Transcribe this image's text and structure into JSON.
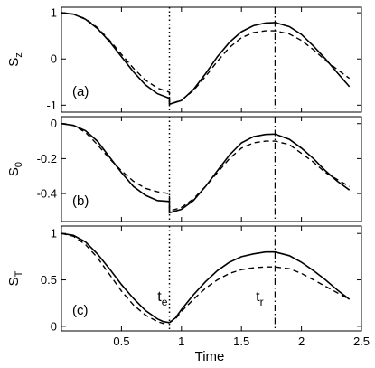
{
  "chart_data": [
    {
      "type": "line",
      "panel_label": "(a)",
      "ylabel": "S",
      "ylabel_sub": "z",
      "xlim": [
        0,
        2.5
      ],
      "ylim": [
        -1.15,
        1.12
      ],
      "yticks": [
        1,
        0,
        -1
      ],
      "ytick_labels": [
        "1",
        "0",
        "-1"
      ],
      "xticks": [
        0.5,
        1,
        1.5,
        2,
        2.5
      ],
      "show_xtick_labels": false,
      "vlines": [
        {
          "x": 0.9,
          "style": "dotted"
        },
        {
          "x": 1.78,
          "style": "dashdot"
        }
      ],
      "series": [
        {
          "style": "solid",
          "x": [
            0,
            0.1,
            0.2,
            0.3,
            0.4,
            0.5,
            0.6,
            0.7,
            0.8,
            0.9,
            0.9,
            1.0,
            1.1,
            1.2,
            1.3,
            1.4,
            1.5,
            1.6,
            1.7,
            1.78,
            1.9,
            2.0,
            2.1,
            2.2,
            2.3,
            2.4
          ],
          "y": [
            1.0,
            0.97,
            0.86,
            0.66,
            0.38,
            0.05,
            -0.28,
            -0.56,
            -0.75,
            -0.85,
            -0.98,
            -0.9,
            -0.66,
            -0.32,
            0.05,
            0.36,
            0.59,
            0.72,
            0.78,
            0.79,
            0.7,
            0.53,
            0.28,
            0.0,
            -0.3,
            -0.6
          ]
        },
        {
          "style": "dashed",
          "x": [
            0,
            0.1,
            0.2,
            0.3,
            0.4,
            0.5,
            0.6,
            0.7,
            0.8,
            0.9,
            0.9,
            1.0,
            1.1,
            1.2,
            1.3,
            1.4,
            1.5,
            1.6,
            1.7,
            1.78,
            1.9,
            2.0,
            2.1,
            2.2,
            2.3,
            2.4
          ],
          "y": [
            1.0,
            0.97,
            0.87,
            0.68,
            0.41,
            0.1,
            -0.2,
            -0.46,
            -0.63,
            -0.72,
            -0.98,
            -0.89,
            -0.68,
            -0.38,
            -0.05,
            0.25,
            0.46,
            0.57,
            0.61,
            0.61,
            0.54,
            0.4,
            0.2,
            -0.03,
            -0.23,
            -0.42
          ]
        }
      ]
    },
    {
      "type": "line",
      "panel_label": "(b)",
      "ylabel": "S",
      "ylabel_sub": "0",
      "xlim": [
        0,
        2.5
      ],
      "ylim": [
        -0.56,
        0.04
      ],
      "yticks": [
        0,
        -0.2,
        -0.4
      ],
      "ytick_labels": [
        "0",
        "-0.2",
        "-0.4"
      ],
      "xticks": [
        0.5,
        1,
        1.5,
        2,
        2.5
      ],
      "show_xtick_labels": false,
      "vlines": [
        {
          "x": 0.9,
          "style": "dotted"
        },
        {
          "x": 1.78,
          "style": "dashdot"
        }
      ],
      "series": [
        {
          "style": "solid",
          "x": [
            0,
            0.1,
            0.2,
            0.3,
            0.4,
            0.5,
            0.6,
            0.7,
            0.8,
            0.9,
            0.9,
            1.0,
            1.1,
            1.2,
            1.3,
            1.4,
            1.5,
            1.6,
            1.7,
            1.78,
            1.9,
            2.0,
            2.1,
            2.2,
            2.3,
            2.4
          ],
          "y": [
            0.0,
            -0.01,
            -0.04,
            -0.1,
            -0.19,
            -0.28,
            -0.36,
            -0.41,
            -0.44,
            -0.445,
            -0.51,
            -0.49,
            -0.44,
            -0.36,
            -0.27,
            -0.18,
            -0.11,
            -0.075,
            -0.062,
            -0.06,
            -0.09,
            -0.14,
            -0.2,
            -0.27,
            -0.33,
            -0.38
          ]
        },
        {
          "style": "dashed",
          "x": [
            0,
            0.1,
            0.2,
            0.3,
            0.4,
            0.5,
            0.6,
            0.7,
            0.8,
            0.9,
            0.9,
            1.0,
            1.1,
            1.2,
            1.3,
            1.4,
            1.5,
            1.6,
            1.7,
            1.78,
            1.9,
            2.0,
            2.1,
            2.2,
            2.3,
            2.4
          ],
          "y": [
            0.0,
            -0.01,
            -0.05,
            -0.12,
            -0.2,
            -0.27,
            -0.33,
            -0.37,
            -0.39,
            -0.4,
            -0.5,
            -0.48,
            -0.43,
            -0.36,
            -0.28,
            -0.2,
            -0.14,
            -0.11,
            -0.1,
            -0.1,
            -0.12,
            -0.17,
            -0.22,
            -0.28,
            -0.32,
            -0.36
          ]
        }
      ]
    },
    {
      "type": "line",
      "panel_label": "(c)",
      "ylabel": "S",
      "ylabel_sub": "T",
      "xlim": [
        0,
        2.5
      ],
      "ylim": [
        -0.05,
        1.08
      ],
      "yticks": [
        1,
        0.5,
        0
      ],
      "ytick_labels": [
        "1",
        "0.5",
        "0"
      ],
      "xticks": [
        0.5,
        1,
        1.5,
        2,
        2.5
      ],
      "xtick_labels": [
        "0.5",
        "1",
        "1.5",
        "2",
        "2.5"
      ],
      "show_xtick_labels": true,
      "xlabel": "Time",
      "vlines": [
        {
          "x": 0.9,
          "style": "dotted"
        },
        {
          "x": 1.78,
          "style": "dashdot"
        }
      ],
      "annotations": [
        {
          "text": "t",
          "sub": "e",
          "x": 0.8,
          "y": 0.27
        },
        {
          "text": "t",
          "sub": "r",
          "x": 1.62,
          "y": 0.27
        }
      ],
      "series": [
        {
          "style": "solid",
          "x": [
            0,
            0.1,
            0.2,
            0.3,
            0.4,
            0.5,
            0.6,
            0.7,
            0.8,
            0.85,
            0.9,
            0.95,
            1.0,
            1.1,
            1.2,
            1.3,
            1.4,
            1.5,
            1.6,
            1.7,
            1.78,
            1.9,
            2.0,
            2.1,
            2.2,
            2.3,
            2.4
          ],
          "y": [
            1.0,
            0.98,
            0.91,
            0.78,
            0.62,
            0.45,
            0.3,
            0.17,
            0.08,
            0.05,
            0.04,
            0.09,
            0.18,
            0.34,
            0.48,
            0.6,
            0.69,
            0.75,
            0.78,
            0.8,
            0.8,
            0.76,
            0.69,
            0.6,
            0.5,
            0.39,
            0.29
          ]
        },
        {
          "style": "dashed",
          "x": [
            0,
            0.1,
            0.2,
            0.3,
            0.4,
            0.5,
            0.6,
            0.7,
            0.8,
            0.85,
            0.9,
            0.95,
            1.0,
            1.1,
            1.2,
            1.3,
            1.4,
            1.5,
            1.6,
            1.7,
            1.78,
            1.9,
            2.0,
            2.1,
            2.2,
            2.3,
            2.4
          ],
          "y": [
            1.0,
            0.97,
            0.88,
            0.74,
            0.56,
            0.38,
            0.23,
            0.12,
            0.05,
            0.03,
            0.04,
            0.08,
            0.16,
            0.29,
            0.41,
            0.5,
            0.57,
            0.61,
            0.63,
            0.64,
            0.64,
            0.62,
            0.57,
            0.5,
            0.43,
            0.36,
            0.29
          ]
        }
      ]
    }
  ]
}
